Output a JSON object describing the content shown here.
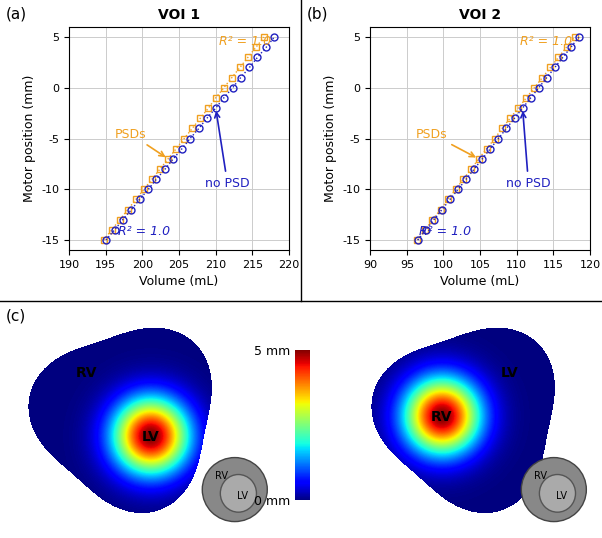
{
  "chart_data": [
    {
      "type": "scatter",
      "label": "(a)",
      "title": "VOI 1",
      "x_label": "Volume (mL)",
      "y_label": "Motor position (mm)",
      "xlim": [
        190,
        220
      ],
      "xticks": [
        190,
        195,
        200,
        205,
        210,
        215,
        220
      ],
      "ylim": [
        -16,
        6
      ],
      "yticks": [
        -15,
        -10,
        -5,
        0,
        5
      ],
      "grid": true,
      "series": [
        {
          "name": "PSDs",
          "color": "#f0a020",
          "marker": "square",
          "line_style": "dotted",
          "annotation": "R² = 1.0",
          "x": [
            194.7,
            195.8,
            196.9,
            198.0,
            199.1,
            200.2,
            201.3,
            202.4,
            203.5,
            204.6,
            205.7,
            206.8,
            207.9,
            209.0,
            210.0,
            211.1,
            212.2,
            213.3,
            214.4,
            215.5,
            216.6
          ],
          "y": [
            -15,
            -14,
            -13,
            -12,
            -11,
            -10,
            -9,
            -8,
            -7,
            -6,
            -5,
            -4,
            -3,
            -2,
            -1,
            0,
            1,
            2,
            3,
            4,
            5
          ]
        },
        {
          "name": "no PSD",
          "color": "#2020c0",
          "marker": "circle",
          "line_style": "dotted",
          "annotation": "R² = 1.0",
          "x": [
            195.0,
            196.2,
            197.3,
            198.5,
            199.6,
            200.8,
            201.9,
            203.1,
            204.2,
            205.4,
            206.5,
            207.7,
            208.8,
            210.0,
            211.1,
            212.3,
            213.4,
            214.6,
            215.7,
            216.9,
            218.0
          ],
          "y": [
            -15,
            -14,
            -13,
            -12,
            -11,
            -10,
            -9,
            -8,
            -7,
            -6,
            -5,
            -4,
            -3,
            -2,
            -1,
            0,
            1,
            2,
            3,
            4,
            5
          ]
        }
      ]
    },
    {
      "type": "scatter",
      "label": "(b)",
      "title": "VOI 2",
      "x_label": "Volume (mL)",
      "y_label": "Motor position (mm)",
      "xlim": [
        90,
        120
      ],
      "xticks": [
        90,
        95,
        100,
        105,
        110,
        115,
        120
      ],
      "ylim": [
        -16,
        6
      ],
      "yticks": [
        -15,
        -10,
        -5,
        0,
        5
      ],
      "grid": true,
      "series": [
        {
          "name": "PSDs",
          "color": "#f0a020",
          "marker": "square",
          "line_style": "dotted",
          "annotation": "R² = 1.0",
          "x": [
            96.4,
            97.5,
            98.5,
            99.6,
            100.6,
            101.7,
            102.7,
            103.8,
            104.8,
            105.9,
            107.0,
            108.0,
            109.1,
            110.2,
            111.3,
            112.4,
            113.5,
            114.6,
            115.7,
            116.8,
            117.9
          ],
          "y": [
            -15,
            -14,
            -13,
            -12,
            -11,
            -10,
            -9,
            -8,
            -7,
            -6,
            -5,
            -4,
            -3,
            -2,
            -1,
            0,
            1,
            2,
            3,
            4,
            5
          ]
        },
        {
          "name": "no PSD",
          "color": "#2020c0",
          "marker": "circle",
          "line_style": "dotted",
          "annotation": "R² = 1.0",
          "x": [
            96.5,
            97.6,
            98.7,
            99.8,
            100.9,
            102.0,
            103.1,
            104.2,
            105.3,
            106.4,
            107.5,
            108.6,
            109.7,
            110.8,
            111.9,
            113.0,
            114.1,
            115.2,
            116.3,
            117.4,
            118.5
          ],
          "y": [
            -15,
            -14,
            -13,
            -12,
            -11,
            -10,
            -9,
            -8,
            -7,
            -6,
            -5,
            -4,
            -3,
            -2,
            -1,
            0,
            1,
            2,
            3,
            4,
            5
          ]
        }
      ]
    }
  ],
  "panel_c": {
    "label": "(c)",
    "views": [
      {
        "hot": "LV",
        "other": "RV",
        "inset_labels": [
          "RV",
          "LV"
        ]
      },
      {
        "hot": "RV",
        "other": "LV",
        "inset_labels": [
          "RV",
          "LV"
        ]
      }
    ],
    "colorbar": {
      "range": [
        0,
        5
      ],
      "ticks": [
        {
          "value": 0,
          "label": "0 mm"
        },
        {
          "value": 5,
          "label": "5 mm"
        }
      ]
    }
  }
}
